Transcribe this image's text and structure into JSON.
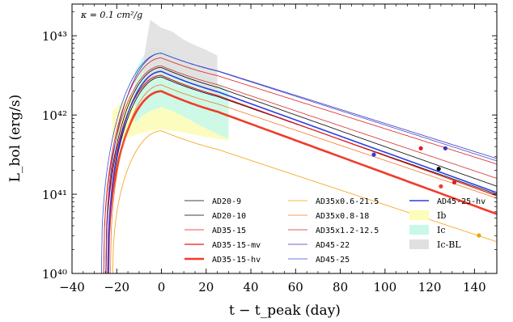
{
  "chart_data": {
    "type": "line",
    "annotation": "κ = 0.1 cm²/g",
    "xlabel": "t − t_peak (day)",
    "ylabel": "L_bol (erg/s)",
    "xlim": [
      -40,
      150
    ],
    "ylim_log10": [
      40,
      43.4
    ],
    "yscale": "log",
    "x_ticks": [
      -40,
      -20,
      0,
      20,
      40,
      60,
      80,
      100,
      120,
      140
    ],
    "x_tick_labels": [
      "−40",
      "−20",
      "0",
      "20",
      "40",
      "60",
      "80",
      "100",
      "120",
      "140"
    ],
    "y_ticks_log10": [
      40,
      41,
      42,
      43
    ],
    "y_tick_labels": [
      "10⁴⁰",
      "10⁴¹",
      "10⁴²",
      "10⁴³"
    ],
    "grid": false,
    "legend_position": "lower-right",
    "series": [
      {
        "name": "AD20-9",
        "color": "#000000",
        "width": 0.8,
        "rise_start": -24,
        "peak_log10": 42.48,
        "end_log10": 41.0,
        "marker_x": null,
        "marker_log10": null
      },
      {
        "name": "AD20-10",
        "color": "#000000",
        "width": 0.8,
        "rise_start": -25,
        "peak_log10": 42.6,
        "end_log10": 41.1,
        "marker_x": 124,
        "marker_log10": 41.32
      },
      {
        "name": "AD35-15",
        "color": "#e31a1c",
        "width": 0.8,
        "rise_start": -26,
        "peak_log10": 42.72,
        "end_log10": 41.38,
        "marker_x": 116,
        "marker_log10": 41.58
      },
      {
        "name": "AD35-15-mv",
        "color": "#e31a1c",
        "width": 1.2,
        "rise_start": -25,
        "peak_log10": 42.5,
        "end_log10": 40.98,
        "marker_x": 131,
        "marker_log10": 41.15
      },
      {
        "name": "AD35-15-hv",
        "color": "#f03c2a",
        "width": 2.6,
        "rise_start": -24,
        "peak_log10": 42.3,
        "end_log10": 40.75,
        "marker_x": 125,
        "marker_log10": 41.1
      },
      {
        "name": "AD35x0.6-21.5",
        "color": "#f2a20d",
        "width": 0.8,
        "rise_start": -22,
        "peak_log10": 41.8,
        "end_log10": 40.4,
        "marker_x": 142,
        "marker_log10": 40.48
      },
      {
        "name": "AD35x0.8-18",
        "color": "#f07828",
        "width": 0.8,
        "rise_start": -23,
        "peak_log10": 42.38,
        "end_log10": 40.95,
        "marker_x": null,
        "marker_log10": null
      },
      {
        "name": "AD35x1.2-12.5",
        "color": "#d42a2a",
        "width": 0.8,
        "rise_start": -26,
        "peak_log10": 42.62,
        "end_log10": 41.2,
        "marker_x": null,
        "marker_log10": null
      },
      {
        "name": "AD45-22",
        "color": "#3f33b8",
        "width": 0.8,
        "rise_start": -25,
        "peak_log10": 42.78,
        "end_log10": 41.45,
        "marker_x": 127,
        "marker_log10": 41.58
      },
      {
        "name": "AD45-25",
        "color": "#3a4fd8",
        "width": 0.8,
        "rise_start": -27,
        "peak_log10": 42.78,
        "end_log10": 41.42,
        "marker_x": null,
        "marker_log10": null
      },
      {
        "name": "AD45-25-hv",
        "color": "#2b3fe0",
        "width": 1.6,
        "rise_start": -24,
        "peak_log10": 42.55,
        "end_log10": 41.02,
        "marker_x": 95,
        "marker_log10": 41.5
      }
    ],
    "bands": [
      {
        "name": "Ib",
        "color": "#fdfcb8",
        "x": [
          -22,
          -15,
          -10,
          -5,
          0,
          5,
          10,
          15,
          20,
          25,
          30
        ],
        "lo_log10": [
          41.65,
          41.72,
          41.76,
          41.8,
          41.82,
          41.8,
          41.78,
          41.75,
          41.72,
          41.7,
          41.68
        ],
        "hi_log10": [
          42.05,
          42.22,
          42.33,
          42.4,
          42.43,
          42.4,
          42.35,
          42.28,
          42.22,
          42.16,
          42.1
        ]
      },
      {
        "name": "Ic",
        "color": "#c8f8ea",
        "x": [
          -12,
          -8,
          -5,
          0,
          5,
          10,
          15,
          20,
          25,
          30
        ],
        "lo_log10": [
          41.9,
          42.0,
          42.05,
          42.1,
          42.05,
          41.98,
          41.9,
          41.83,
          41.76,
          41.7
        ],
        "hi_log10": [
          42.55,
          42.75,
          42.84,
          42.86,
          42.78,
          42.7,
          42.6,
          42.5,
          42.4,
          42.3
        ]
      },
      {
        "name": "Ic-BL",
        "color": "#e0e0e0",
        "x": [
          -8,
          -5,
          0,
          5,
          10,
          15,
          20,
          25
        ],
        "lo_log10": [
          42.3,
          42.45,
          42.55,
          42.5,
          42.45,
          42.4,
          42.32,
          42.25
        ],
        "hi_log10": [
          42.7,
          43.2,
          43.1,
          43.05,
          42.95,
          42.88,
          42.82,
          42.75
        ]
      }
    ],
    "legend_columns": [
      [
        "AD20-9",
        "AD20-10",
        "AD35-15",
        "AD35-15-mv",
        "AD35-15-hv"
      ],
      [
        "AD35x0.6-21.5",
        "AD35x0.8-18",
        "AD35x1.2-12.5",
        "AD45-22",
        "AD45-25"
      ],
      [
        "AD45-25-hv",
        "Ib",
        "Ic",
        "Ic-BL"
      ]
    ]
  }
}
